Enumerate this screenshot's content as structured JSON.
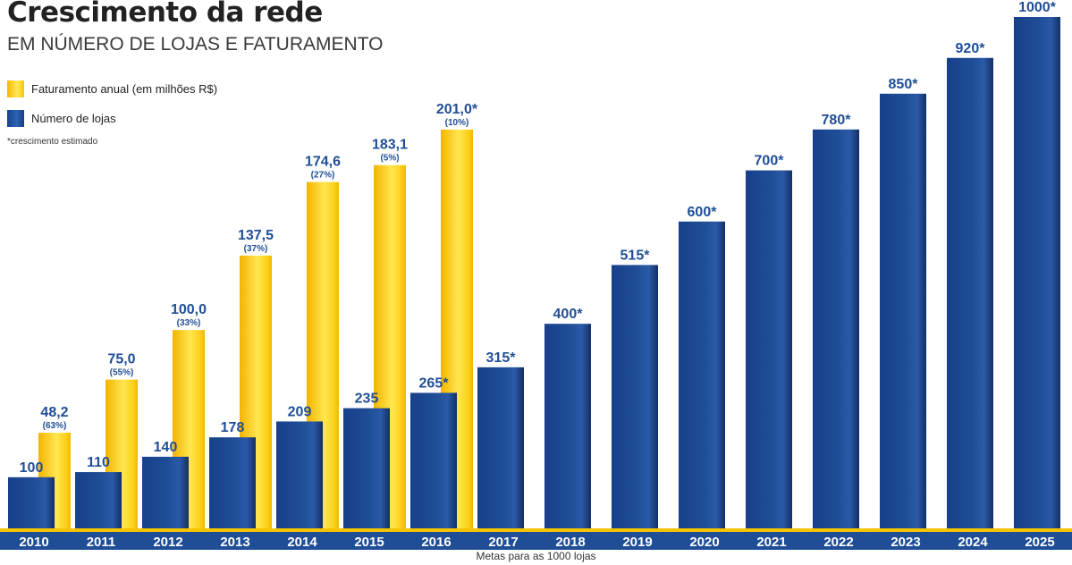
{
  "header": {
    "title": "Crescimento da rede",
    "subtitle": "EM NÚMERO DE LOJAS E FATURAMENTO"
  },
  "legend": {
    "revenue": "Faturamento anual (em milhões R$)",
    "stores": "Número de lojas"
  },
  "footnote": "*crescimento estimado",
  "caption": "Metas para as 1000 lojas",
  "colors": {
    "stores": "#1f4e96",
    "revenue": "#fbd11a",
    "axis_band": "#1f4e96",
    "axis_line": "#f4c400",
    "value_label": "#1f4e96",
    "year_label": "#ffffff"
  },
  "chart_data": {
    "type": "bar",
    "categories": [
      "2010",
      "2011",
      "2012",
      "2013",
      "2014",
      "2015",
      "2016",
      "2017",
      "2018",
      "2019",
      "2020",
      "2021",
      "2022",
      "2023",
      "2024",
      "2025"
    ],
    "series": [
      {
        "name": "Número de lojas",
        "values": [
          100,
          110,
          140,
          178,
          209,
          235,
          265,
          315,
          400,
          515,
          600,
          700,
          780,
          850,
          920,
          1000
        ],
        "labels": [
          "100",
          "110",
          "140",
          "178",
          "209",
          "235",
          "265*",
          "315*",
          "400*",
          "515*",
          "600*",
          "700*",
          "780*",
          "850*",
          "920*",
          "1000*"
        ]
      },
      {
        "name": "Faturamento anual (em milhões R$)",
        "values": [
          48.2,
          75.0,
          100.0,
          137.5,
          174.6,
          183.1,
          201.0,
          null,
          null,
          null,
          null,
          null,
          null,
          null,
          null,
          null
        ],
        "labels": [
          "48,2",
          "75,0",
          "100,0",
          "137,5",
          "174,6",
          "183,1",
          "201,0*",
          "",
          "",
          "",
          "",
          "",
          "",
          "",
          "",
          ""
        ],
        "growth": [
          "(63%)",
          "(55%)",
          "(33%)",
          "(37%)",
          "(27%)",
          "(5%)",
          "(10%)",
          "",
          "",
          "",
          "",
          "",
          "",
          "",
          "",
          ""
        ]
      }
    ]
  }
}
